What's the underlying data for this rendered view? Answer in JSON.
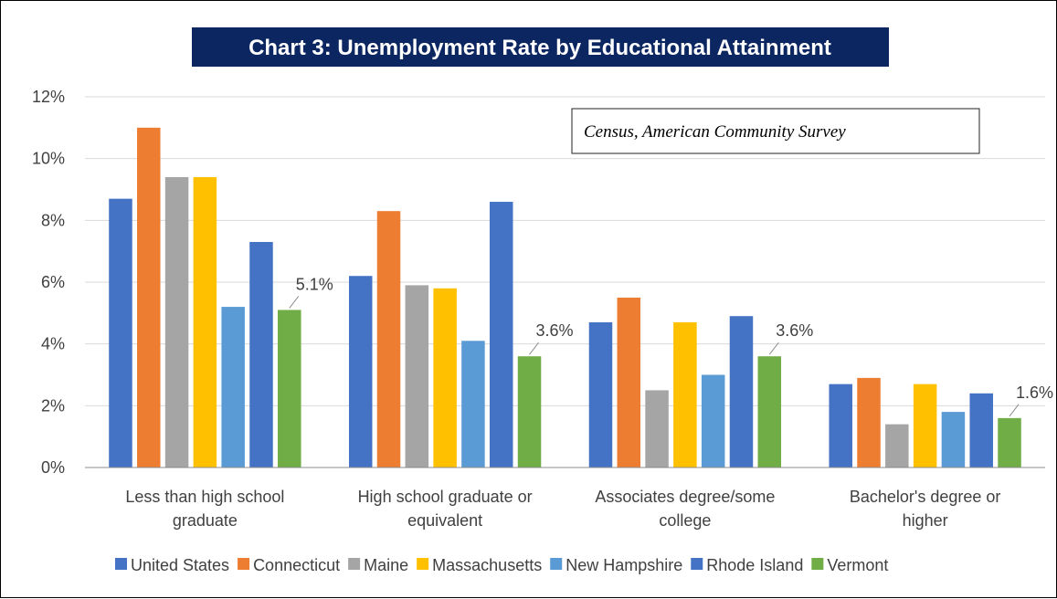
{
  "chart_data": {
    "type": "bar",
    "title": "Chart 3: Unemployment Rate by Educational Attainment",
    "annotation": "Census, American Community Survey",
    "xlabel": "",
    "ylabel": "",
    "ylim": [
      0,
      12
    ],
    "yticks": [
      0,
      2,
      4,
      6,
      8,
      10,
      12
    ],
    "ytick_labels": [
      "0%",
      "2%",
      "4%",
      "6%",
      "8%",
      "10%",
      "12%"
    ],
    "grid": true,
    "legend_position": "bottom",
    "categories": [
      [
        "Less than high school",
        "graduate"
      ],
      [
        "High school graduate or",
        "equivalent"
      ],
      [
        "Associates degree/some",
        "college"
      ],
      [
        "Bachelor's degree or",
        "higher"
      ]
    ],
    "series": [
      {
        "name": "United States",
        "color": "#4472c4",
        "values": [
          8.7,
          6.2,
          4.7,
          2.7
        ]
      },
      {
        "name": "Connecticut",
        "color": "#ed7d31",
        "values": [
          11.0,
          8.3,
          5.5,
          2.9
        ]
      },
      {
        "name": "Maine",
        "color": "#a5a5a5",
        "values": [
          9.4,
          5.9,
          2.5,
          1.4
        ]
      },
      {
        "name": "Massachusetts",
        "color": "#ffc000",
        "values": [
          9.4,
          5.8,
          4.7,
          2.7
        ]
      },
      {
        "name": "New Hampshire",
        "color": "#5b9bd5",
        "values": [
          5.2,
          4.1,
          3.0,
          1.8
        ]
      },
      {
        "name": "Rhode Island",
        "color": "#4472c4",
        "values": [
          7.3,
          8.6,
          4.9,
          2.4
        ]
      },
      {
        "name": "Vermont",
        "color": "#70ad47",
        "values": [
          5.1,
          3.6,
          3.6,
          1.6
        ],
        "data_labels": [
          "5.1%",
          "3.6%",
          "3.6%",
          "1.6%"
        ]
      }
    ]
  }
}
